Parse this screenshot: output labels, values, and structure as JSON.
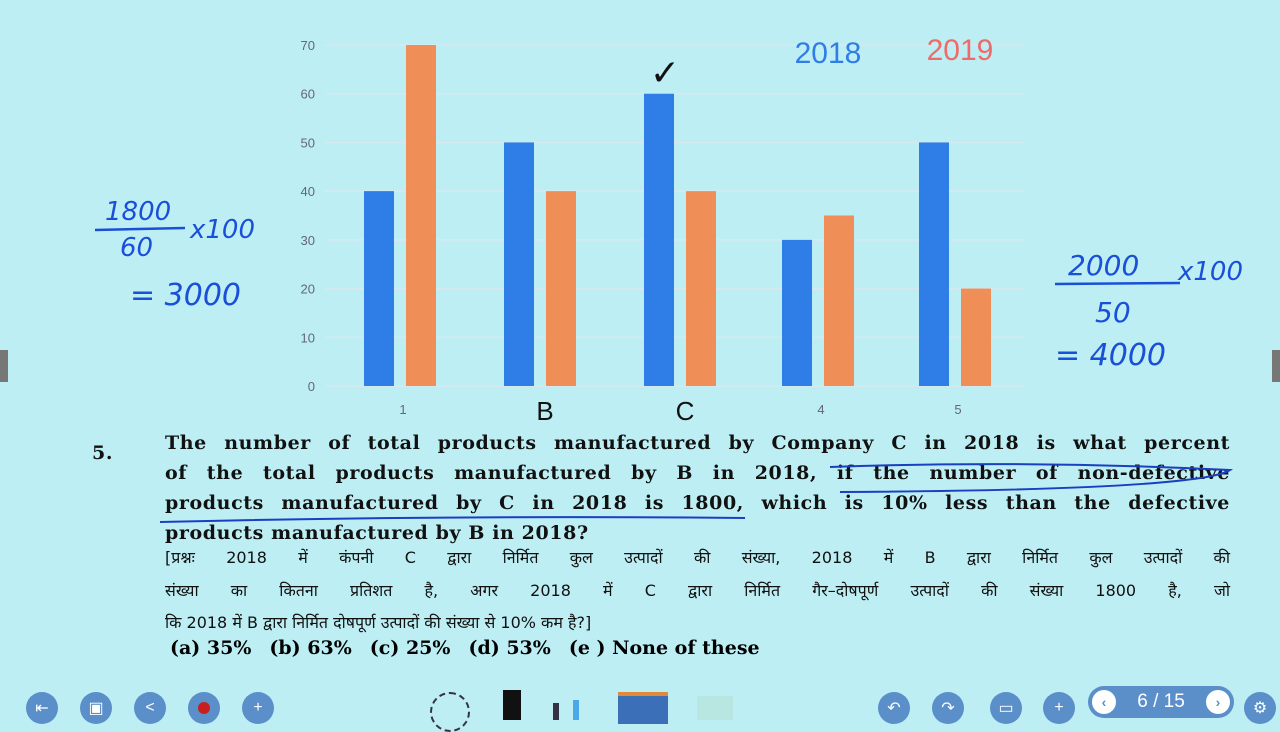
{
  "chart_data": {
    "type": "bar",
    "categories": [
      "1",
      "B",
      "C",
      "4",
      "5"
    ],
    "series": [
      {
        "name": "2018",
        "values": [
          40,
          50,
          60,
          30,
          50
        ],
        "color": "#2f7de6"
      },
      {
        "name": "2019",
        "values": [
          70,
          40,
          40,
          35,
          20
        ],
        "color": "#ef8f57"
      }
    ],
    "yticks": [
      0,
      10,
      20,
      30,
      40,
      50,
      60,
      70
    ],
    "ylim": [
      0,
      70
    ],
    "grid": true,
    "legend_placement": "top-right"
  },
  "annotations": {
    "check": "✓",
    "left_num": "1800",
    "left_den": "60",
    "left_mult": "x100",
    "left_result": "= 3000",
    "right_num": "2000",
    "right_den": "50",
    "right_mult": "x100",
    "right_result": "= 4000"
  },
  "question": {
    "number": "5.",
    "lines": [
      "The number of total products manufactured by Company C in 2018 is what percent",
      "of the total products manufactured by B in 2018, if the number of non-defective",
      "products manufactured by C in 2018 is 1800, which is 10% less than the defective",
      "products manufactured by B in 2018?"
    ],
    "hindi_lines": [
      "[प्रश्नः 2018 में कंपनी C द्वारा निर्मित कुल उत्पादों की संख्या, 2018 में B द्वारा निर्मित कुल उत्पादों की",
      "संख्या का कितना प्रतिशत है, अगर 2018 में C द्वारा निर्मित गैर–दोषपूर्ण उत्पादों की संख्या 1800 है, जो",
      "कि 2018 में B द्वारा निर्मित दोषपूर्ण उत्पादों की संख्या से 10% कम है?]"
    ],
    "options": [
      "(a)    35%",
      "(b)    63%",
      "(c)    25%",
      "(d)    53%",
      "(e ) None of these"
    ]
  },
  "toolbar": {
    "page": "6 / 15"
  }
}
